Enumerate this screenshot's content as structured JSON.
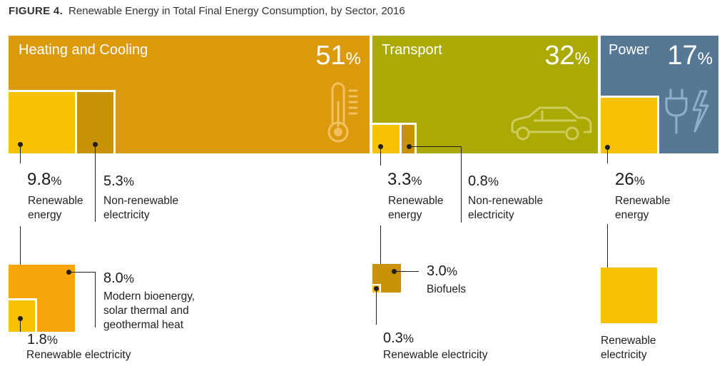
{
  "title": {
    "prefix": "FIGURE 4.",
    "text": "Renewable Energy in Total Final Energy Consumption, by Sector, 2016"
  },
  "colors": {
    "heating": "#da9a0b",
    "transport": "#abaa04",
    "power": "#567895",
    "yellow": "#f8c202",
    "orange": "#f8a50a",
    "dark_mustard": "#c99106",
    "outline": "#ffffff"
  },
  "sectors": [
    {
      "name": "Heating and Cooling",
      "share": "51",
      "unit": "%",
      "icon": "thermometer-icon",
      "items": [
        {
          "value": "9.8",
          "unit": "%",
          "label_line1": "Renewable",
          "label_line2": "energy"
        },
        {
          "value": "5.3",
          "unit": "%",
          "label_line1": "Non-renewable",
          "label_line2": "electricity"
        }
      ],
      "breakdown": [
        {
          "value": "8.0",
          "unit": "%",
          "label_line1": "Modern bioenergy,",
          "label_line2": "solar thermal and",
          "label_line3": "geothermal heat"
        },
        {
          "value": "1.8",
          "unit": "%",
          "label_line1": "Renewable electricity"
        }
      ]
    },
    {
      "name": "Transport",
      "share": "32",
      "unit": "%",
      "icon": "car-icon",
      "items": [
        {
          "value": "3.3",
          "unit": "%",
          "label_line1": "Renewable",
          "label_line2": "energy"
        },
        {
          "value": "0.8",
          "unit": "%",
          "label_line1": "Non-renewable",
          "label_line2": "electricity"
        }
      ],
      "breakdown": [
        {
          "value": "3.0",
          "unit": "%",
          "label_line1": "Biofuels"
        },
        {
          "value": "0.3",
          "unit": "%",
          "label_line1": "Renewable electricity"
        }
      ]
    },
    {
      "name": "Power",
      "share": "17",
      "unit": "%",
      "icon": "power-plug-icon",
      "items": [
        {
          "value": "26",
          "unit": "%",
          "label_line1": "Renewable",
          "label_line2": "energy"
        }
      ],
      "breakdown": [
        {
          "label_line1": "Renewable",
          "label_line2": "electricity"
        }
      ]
    }
  ]
}
